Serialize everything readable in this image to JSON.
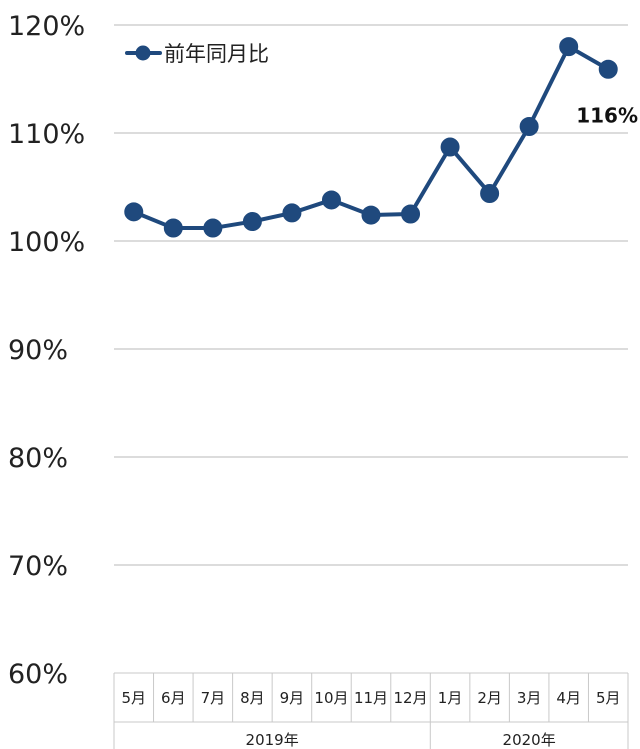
{
  "chart_data": {
    "type": "line",
    "categories": [
      "5月",
      "6月",
      "7月",
      "8月",
      "9月",
      "10月",
      "11月",
      "12月",
      "1月",
      "2月",
      "3月",
      "4月",
      "5月"
    ],
    "year_groups": [
      {
        "label": "2019年",
        "start_index": 0,
        "end_index": 7
      },
      {
        "label": "2020年",
        "start_index": 8,
        "end_index": 12
      }
    ],
    "series": [
      {
        "name": "前年同月比",
        "values": [
          102.7,
          101.2,
          101.2,
          101.8,
          102.6,
          103.8,
          102.4,
          102.5,
          108.7,
          104.4,
          110.6,
          118.0,
          115.9
        ],
        "color": "#1f497d"
      }
    ],
    "ylim": [
      60,
      120
    ],
    "y_ticks": [
      "60%",
      "70%",
      "80%",
      "90%",
      "100%",
      "110%",
      "120%"
    ],
    "data_labels": [
      {
        "index": 12,
        "text": "116%"
      }
    ],
    "legend": {
      "position": "top-left"
    },
    "grid": true
  }
}
